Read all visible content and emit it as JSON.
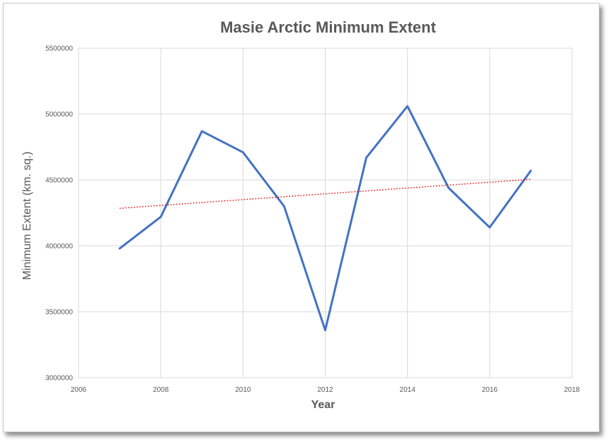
{
  "chart_data": {
    "type": "line",
    "title": "Masie Arctic Minimum Extent",
    "xlabel": "Year",
    "ylabel": "Minimum Extent (km. sq.)",
    "xlim": [
      2006,
      2018
    ],
    "ylim": [
      3000000,
      5500000
    ],
    "x_ticks": [
      2006,
      2008,
      2010,
      2012,
      2014,
      2016,
      2018
    ],
    "y_ticks": [
      3000000,
      3500000,
      4000000,
      4500000,
      5000000,
      5500000
    ],
    "grid": true,
    "legend": "none",
    "series": [
      {
        "x": [
          2007,
          2008,
          2009,
          2010,
          2011,
          2012,
          2013,
          2014,
          2015,
          2016,
          2017
        ],
        "values": [
          3980000,
          4220000,
          4870000,
          4710000,
          4300000,
          3360000,
          4670000,
          5060000,
          4440000,
          4140000,
          4570000
        ],
        "color": "#4472c4"
      }
    ],
    "trendline": {
      "type": "linear",
      "style": "dotted",
      "color": "#ff0000",
      "x": [
        2007,
        2017
      ],
      "values": [
        4285000,
        4505000
      ]
    }
  }
}
